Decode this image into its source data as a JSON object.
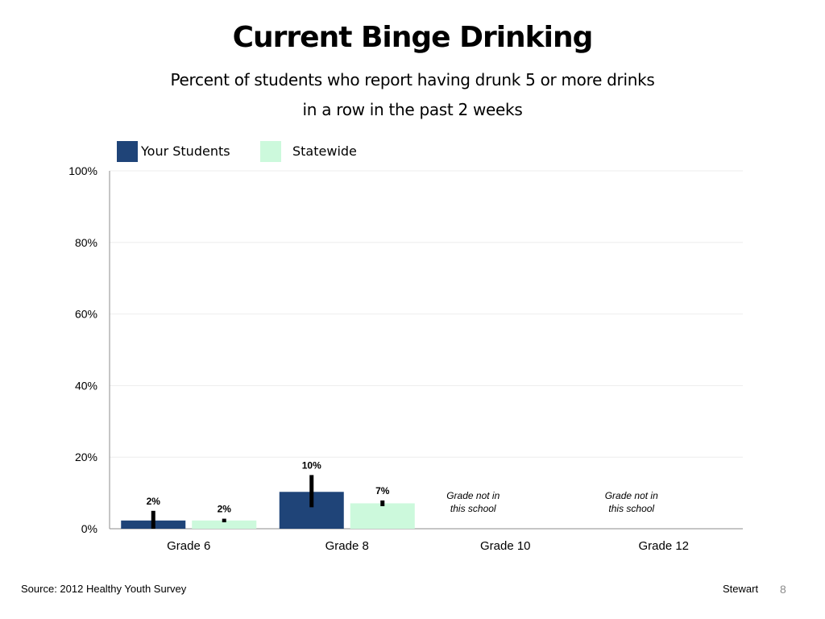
{
  "title": "Current Binge Drinking",
  "subtitle_line1": "Percent of students who report having drunk 5 or more drinks",
  "subtitle_line2": "in a row in the past 2 weeks",
  "footer": {
    "source": "Source: 2012 Healthy Youth Survey",
    "author": "Stewart",
    "page": "8"
  },
  "colors": {
    "your_students": "#1f4478",
    "statewide": "#ccf9dc"
  },
  "legend": [
    {
      "name": "Your Students",
      "color_key": "your_students"
    },
    {
      "name": "Statewide",
      "color_key": "statewide"
    }
  ],
  "chart_data": {
    "type": "bar",
    "title": "Current Binge Drinking",
    "xlabel": "",
    "ylabel": "",
    "ylim": [
      0,
      100
    ],
    "yticks": [
      "0%",
      "20%",
      "40%",
      "60%",
      "80%",
      "100%"
    ],
    "grid": true,
    "legend_position": "top-left",
    "categories": [
      "Grade 6",
      "Grade 8",
      "Grade 10",
      "Grade 12"
    ],
    "series": [
      {
        "name": "Your Students",
        "values": [
          2.3,
          10.3,
          null,
          null
        ],
        "labels": [
          "2%",
          "10%",
          "",
          ""
        ],
        "error_low": [
          0,
          6,
          null,
          null
        ],
        "error_high": [
          5,
          15,
          null,
          null
        ]
      },
      {
        "name": "Statewide",
        "values": [
          2.3,
          7.1,
          null,
          null
        ],
        "labels": [
          "2%",
          "7%",
          "",
          ""
        ],
        "error_low": [
          1.8,
          6.3,
          null,
          null
        ],
        "error_high": [
          2.8,
          7.9,
          null,
          null
        ]
      }
    ],
    "annotations": [
      {
        "category": "Grade 10",
        "line1": "Grade not in",
        "line2": "this school"
      },
      {
        "category": "Grade 12",
        "line1": "Grade not in",
        "line2": "this school"
      }
    ]
  }
}
